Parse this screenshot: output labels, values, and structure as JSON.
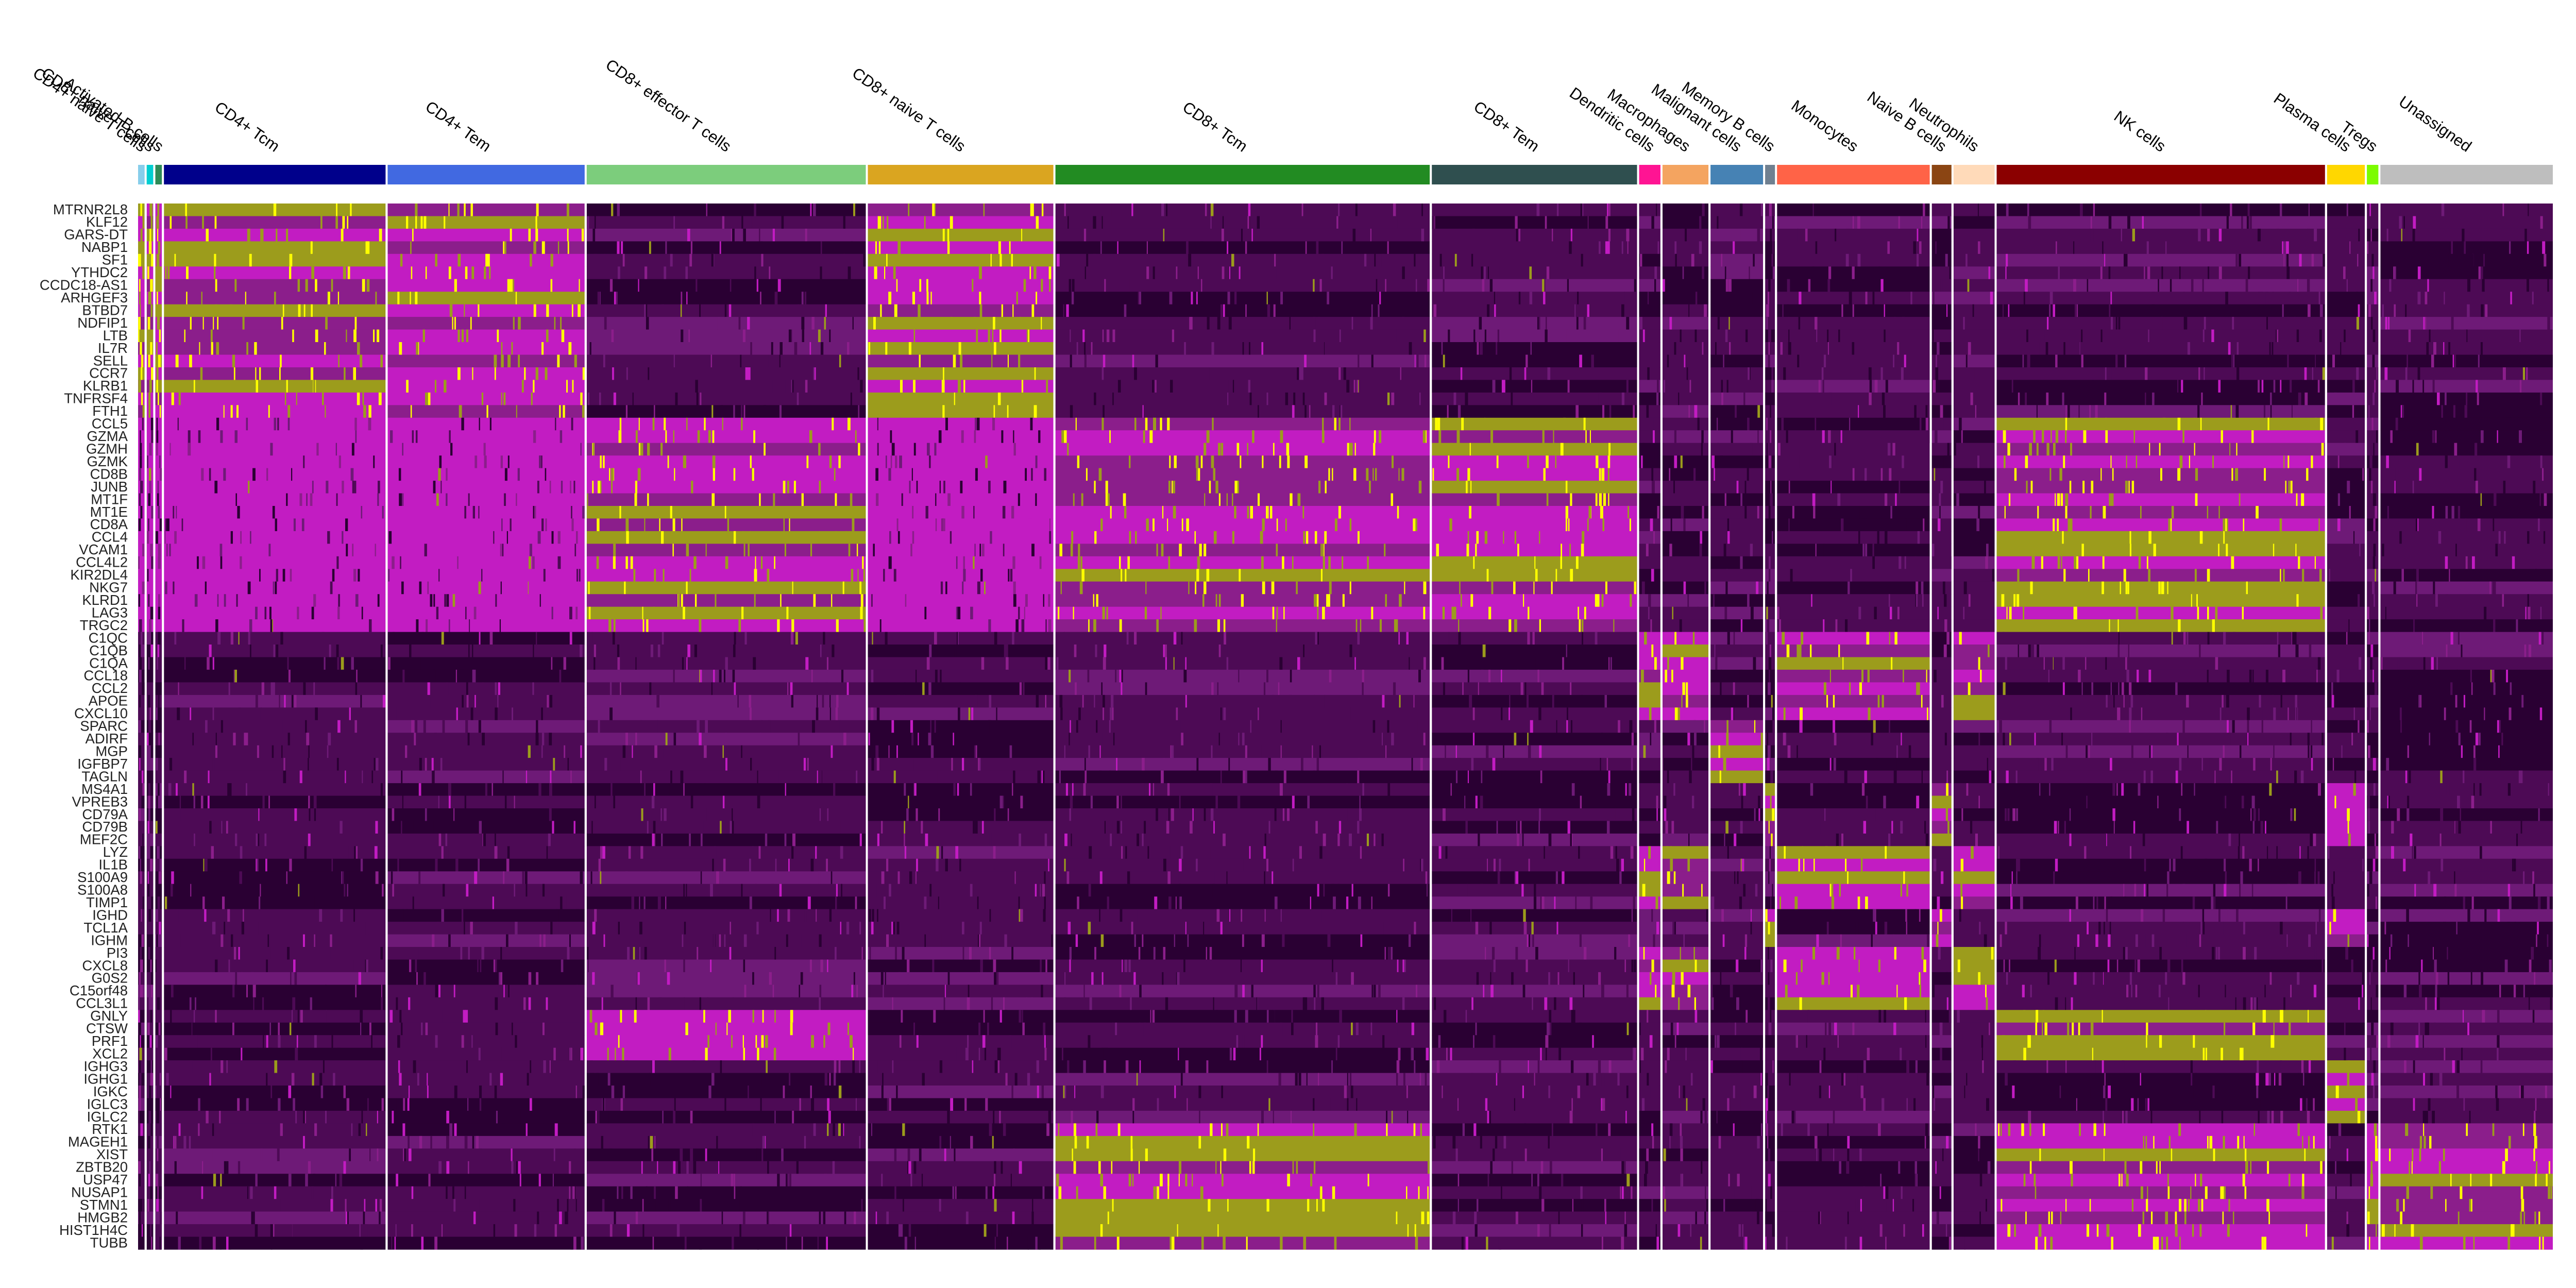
{
  "chart_data": {
    "type": "heatmap",
    "title": "",
    "xlabel": "",
    "ylabel": "",
    "colormap": [
      "#000000",
      "#8b008b",
      "#ff00ff",
      "#ffff00"
    ],
    "clusters": [
      {
        "name": "CD4+ naive T cells",
        "color": "#87ceeb",
        "weight": 0.4
      },
      {
        "name": "CD8+ naive T cells",
        "color": "#00ced1",
        "weight": 0.4
      },
      {
        "name": "Activated B cells",
        "color": "#2e8b57",
        "weight": 0.4
      },
      {
        "name": "CD4+ Tcm",
        "color": "#00008b",
        "weight": 13.5
      },
      {
        "name": "CD4+ Tem",
        "color": "#4169e1",
        "weight": 12.0
      },
      {
        "name": "CD8+ effector T cells",
        "color": "#7ccd7c",
        "weight": 17.0
      },
      {
        "name": "CD8+ naive T cells",
        "color": "#daa520",
        "weight": 11.3
      },
      {
        "name": "CD8+ Tcm",
        "color": "#228b22",
        "weight": 22.8
      },
      {
        "name": "CD8+ Tem",
        "color": "#2f4f4f",
        "weight": 12.5
      },
      {
        "name": "Dendritic cells",
        "color": "#ff1493",
        "weight": 1.3
      },
      {
        "name": "Macrophages",
        "color": "#f4a460",
        "weight": 2.8
      },
      {
        "name": "Malignant cells",
        "color": "#4682b4",
        "weight": 3.2
      },
      {
        "name": "Memory B cells",
        "color": "#708090",
        "weight": 0.6
      },
      {
        "name": "Monocytes",
        "color": "#ff6347",
        "weight": 9.3
      },
      {
        "name": "Naive B cells",
        "color": "#8b4513",
        "weight": 1.2
      },
      {
        "name": "Neutrophils",
        "color": "#ffdab9",
        "weight": 2.5
      },
      {
        "name": "NK cells",
        "color": "#8b0000",
        "weight": 20.0
      },
      {
        "name": "Plasma cells",
        "color": "#ffd700",
        "weight": 2.3
      },
      {
        "name": "Tregs",
        "color": "#7cfc00",
        "weight": 0.7
      },
      {
        "name": "Unassigned",
        "color": "#bebebe",
        "weight": 10.5
      }
    ],
    "genes": [
      "MTRNR2L8",
      "KLF12",
      "GARS-DT",
      "NABP1",
      "SF1",
      "YTHDC2",
      "CCDC18-AS1",
      "ARHGEF3",
      "BTBD7",
      "NDFIP1",
      "LTB",
      "IL7R",
      "SELL",
      "CCR7",
      "KLRB1",
      "TNFRSF4",
      "FTH1",
      "CCL5",
      "GZMA",
      "GZMH",
      "GZMK",
      "CD8B",
      "JUNB",
      "MT1F",
      "MT1E",
      "CD8A",
      "CCL4",
      "VCAM1",
      "CCL4L2",
      "KIR2DL4",
      "NKG7",
      "KLRD1",
      "LAG3",
      "TRGC2",
      "C1QC",
      "C1QB",
      "C1QA",
      "CCL18",
      "CCL2",
      "APOE",
      "CXCL10",
      "SPARC",
      "ADIRF",
      "MGP",
      "IGFBP7",
      "TAGLN",
      "MS4A1",
      "VPREB3",
      "CD79A",
      "CD79B",
      "MEF2C",
      "LYZ",
      "IL1B",
      "S100A9",
      "S100A8",
      "TIMP1",
      "IGHD",
      "TCL1A",
      "IGHM",
      "PI3",
      "CXCL8",
      "G0S2",
      "C15orf48",
      "CCL3L1",
      "GNLY",
      "CTSW",
      "PRF1",
      "XCL2",
      "IGHG3",
      "IGHG1",
      "IGKC",
      "IGLC3",
      "IGLC2",
      "RTK1",
      "MAGEH1",
      "XIST",
      "ZBTB20",
      "USP47",
      "NUSAP1",
      "STMN1",
      "HMGB2",
      "HIST1H4C",
      "TUBB"
    ]
  }
}
